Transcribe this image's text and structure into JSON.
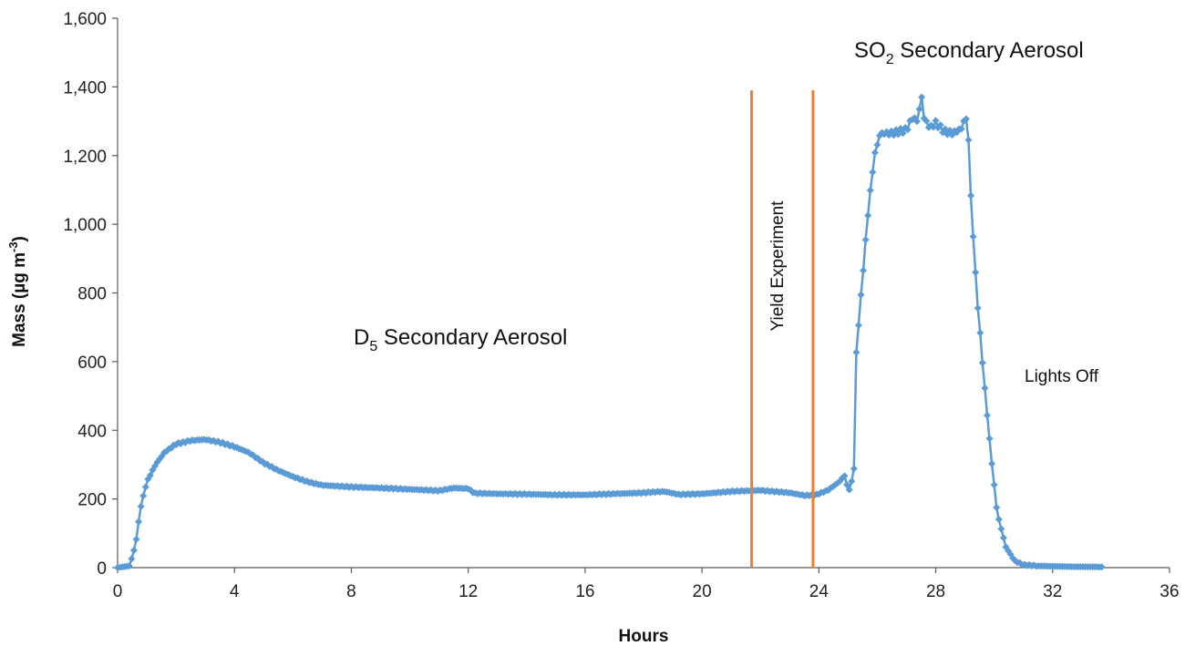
{
  "chart_data": {
    "type": "line",
    "xlabel": "Hours",
    "ylabel_main": "Mass (µg m",
    "ylabel_sup": "-3",
    "ylabel_close": ")",
    "xlim": [
      0,
      36
    ],
    "ylim": [
      0,
      1600
    ],
    "x_ticks": [
      "0",
      "4",
      "8",
      "12",
      "16",
      "20",
      "24",
      "28",
      "32",
      "36"
    ],
    "y_ticks": [
      "0",
      "200",
      "400",
      "600",
      "800",
      "1,000",
      "1,200",
      "1,400",
      "1,600"
    ],
    "series_color": "#5b9bd5",
    "marker": "diamond",
    "vline_color": "#ed7d31",
    "vlines": [
      {
        "x": 21.7,
        "y_top": 1390
      },
      {
        "x": 23.8,
        "y_top": 1390
      }
    ],
    "annotations": {
      "d5_main": "D",
      "d5_sub": "5",
      "d5_rest": " Secondary Aerosol",
      "so2_main": "SO",
      "so2_sub": "2",
      "so2_rest": " Secondary Aerosol",
      "yield": "Yield Experiment",
      "lights_off": "Lights Off"
    },
    "control_points": [
      [
        0.0,
        0
      ],
      [
        0.4,
        5
      ],
      [
        0.6,
        60
      ],
      [
        0.8,
        180
      ],
      [
        1.0,
        250
      ],
      [
        1.3,
        300
      ],
      [
        1.6,
        335
      ],
      [
        2.0,
        360
      ],
      [
        2.5,
        370
      ],
      [
        3.0,
        373
      ],
      [
        3.5,
        365
      ],
      [
        4.0,
        352
      ],
      [
        4.5,
        335
      ],
      [
        5.0,
        305
      ],
      [
        5.5,
        283
      ],
      [
        6.0,
        265
      ],
      [
        6.5,
        250
      ],
      [
        7.0,
        240
      ],
      [
        8.0,
        235
      ],
      [
        9.0,
        232
      ],
      [
        10.0,
        228
      ],
      [
        11.0,
        224
      ],
      [
        11.5,
        232
      ],
      [
        12.0,
        230
      ],
      [
        12.2,
        217
      ],
      [
        13.0,
        215
      ],
      [
        14.0,
        214
      ],
      [
        15.0,
        212
      ],
      [
        16.0,
        212
      ],
      [
        17.0,
        215
      ],
      [
        18.0,
        218
      ],
      [
        18.7,
        222
      ],
      [
        19.2,
        213
      ],
      [
        20.0,
        215
      ],
      [
        21.0,
        222
      ],
      [
        22.0,
        225
      ],
      [
        23.0,
        218
      ],
      [
        23.5,
        210
      ],
      [
        23.9,
        212
      ],
      [
        24.3,
        225
      ],
      [
        24.7,
        250
      ],
      [
        24.9,
        270
      ],
      [
        25.0,
        220
      ],
      [
        25.1,
        240
      ],
      [
        25.2,
        290
      ],
      [
        25.25,
        590
      ],
      [
        25.35,
        700
      ],
      [
        25.5,
        850
      ],
      [
        25.7,
        1050
      ],
      [
        25.9,
        1200
      ],
      [
        26.1,
        1265
      ],
      [
        26.5,
        1265
      ],
      [
        27.0,
        1275
      ],
      [
        27.2,
        1310
      ],
      [
        27.4,
        1300
      ],
      [
        27.5,
        1385
      ],
      [
        27.6,
        1310
      ],
      [
        27.8,
        1280
      ],
      [
        28.0,
        1295
      ],
      [
        28.3,
        1270
      ],
      [
        28.6,
        1265
      ],
      [
        28.9,
        1280
      ],
      [
        29.0,
        1315
      ],
      [
        29.1,
        1290
      ],
      [
        29.2,
        1080
      ],
      [
        29.4,
        800
      ],
      [
        29.7,
        500
      ],
      [
        29.9,
        320
      ],
      [
        30.1,
        160
      ],
      [
        30.4,
        60
      ],
      [
        30.7,
        20
      ],
      [
        31.0,
        8
      ],
      [
        31.5,
        5
      ],
      [
        32.5,
        3
      ],
      [
        33.7,
        2
      ]
    ],
    "step_hours": 0.08
  }
}
